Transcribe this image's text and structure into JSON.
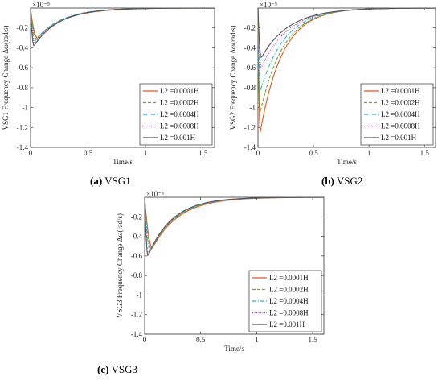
{
  "panels": [
    {
      "caption_letter": "(a)",
      "caption_text": " VSG1"
    },
    {
      "caption_letter": "(b)",
      "caption_text": " VSG2"
    },
    {
      "caption_letter": "(c)",
      "caption_text": " VSG3"
    }
  ],
  "chart_data": [
    {
      "type": "line",
      "title": "",
      "xlabel": "Time/s",
      "ylabel": "VSG1 Frequency Change Δω(rad/s)",
      "y_exponent_label": "×10⁻⁵",
      "xlim": [
        0,
        1.6
      ],
      "ylim": [
        -1.4,
        0
      ],
      "xticks": [
        0,
        0.5,
        1,
        1.5
      ],
      "xtick_labels": [
        "0",
        "0.5",
        "1",
        "1.5"
      ],
      "yticks": [
        -0.2,
        -0.4,
        -0.6,
        -0.8,
        -1,
        -1.2,
        -1.4
      ],
      "ytick_labels": [
        "-0.2",
        "-0.4",
        "-0.6",
        "-0.8",
        "-1",
        "-1.2",
        "-1.4"
      ],
      "grid": false,
      "legend_position": "bottom-right",
      "series": [
        {
          "name": "L2 =0.0001H",
          "color": "#e8541e",
          "dash": "solid",
          "peak_time": 0.06,
          "peak": -0.3,
          "tau": 0.24
        },
        {
          "name": "L2 =0.0002H",
          "color": "#6aaa2a",
          "dash": "dashed",
          "peak_time": 0.05,
          "peak": -0.31,
          "tau": 0.23
        },
        {
          "name": "L2 =0.0004H",
          "color": "#2ab0e0",
          "dash": "dashdot",
          "peak_time": 0.04,
          "peak": -0.33,
          "tau": 0.22
        },
        {
          "name": "L2 =0.0008H",
          "color": "#9b3fb3",
          "dash": "dotted",
          "peak_time": 0.035,
          "peak": -0.36,
          "tau": 0.22
        },
        {
          "name": "L2 =0.001H",
          "color": "#555555",
          "dash": "solid",
          "peak_time": 0.03,
          "peak": -0.38,
          "tau": 0.22
        }
      ]
    },
    {
      "type": "line",
      "title": "",
      "xlabel": "Time/s",
      "ylabel": "VSG2 Frequency Change Δω(rad/s)",
      "y_exponent_label": "×10⁻⁵",
      "xlim": [
        0,
        1.6
      ],
      "ylim": [
        -1.4,
        0
      ],
      "xticks": [
        0,
        0.5,
        1,
        1.5
      ],
      "xtick_labels": [
        "0",
        "0.5",
        "1",
        "1.5"
      ],
      "yticks": [
        -0.2,
        -0.4,
        -0.6,
        -0.8,
        -1,
        -1.2,
        -1.4
      ],
      "ytick_labels": [
        "-0.2",
        "-0.4",
        "-0.6",
        "-0.8",
        "-1",
        "-1.2",
        "-1.4"
      ],
      "grid": false,
      "legend_position": "bottom-right",
      "series": [
        {
          "name": "L2 =0.0001H",
          "color": "#e8541e",
          "dash": "solid",
          "peak_time": 0.02,
          "peak": -1.25,
          "tau": 0.2
        },
        {
          "name": "L2 =0.0002H",
          "color": "#6aaa2a",
          "dash": "dashed",
          "peak_time": 0.02,
          "peak": -1.05,
          "tau": 0.21
        },
        {
          "name": "L2 =0.0004H",
          "color": "#2ab0e0",
          "dash": "dashdot",
          "peak_time": 0.025,
          "peak": -0.82,
          "tau": 0.22
        },
        {
          "name": "L2 =0.0008H",
          "color": "#9b3fb3",
          "dash": "dotted",
          "peak_time": 0.03,
          "peak": -0.6,
          "tau": 0.24
        },
        {
          "name": "L2 =0.001H",
          "color": "#555555",
          "dash": "solid",
          "peak_time": 0.03,
          "peak": -0.5,
          "tau": 0.25
        }
      ]
    },
    {
      "type": "line",
      "title": "",
      "xlabel": "Time/s",
      "ylabel": "VSG3 Frequency Change Δω(rad/s)",
      "y_exponent_label": "×10⁻⁵",
      "xlim": [
        0,
        1.6
      ],
      "ylim": [
        -1.4,
        0
      ],
      "xticks": [
        0,
        0.5,
        1,
        1.5
      ],
      "xtick_labels": [
        "0",
        "0.5",
        "1",
        "1.5"
      ],
      "yticks": [
        -0.2,
        -0.4,
        -0.6,
        -0.8,
        -1,
        -1.2,
        -1.4
      ],
      "ytick_labels": [
        "-0.2",
        "-0.4",
        "-0.6",
        "-0.8",
        "-1",
        "-1.2",
        "-1.4"
      ],
      "grid": false,
      "legend_position": "bottom-right",
      "series": [
        {
          "name": "L2 =0.0001H",
          "color": "#e8541e",
          "dash": "solid",
          "peak_time": 0.07,
          "peak": -0.52,
          "tau": 0.24
        },
        {
          "name": "L2 =0.0002H",
          "color": "#6aaa2a",
          "dash": "dashed",
          "peak_time": 0.06,
          "peak": -0.53,
          "tau": 0.23
        },
        {
          "name": "L2 =0.0004H",
          "color": "#2ab0e0",
          "dash": "dashdot",
          "peak_time": 0.05,
          "peak": -0.55,
          "tau": 0.23
        },
        {
          "name": "L2 =0.0008H",
          "color": "#9b3fb3",
          "dash": "dotted",
          "peak_time": 0.035,
          "peak": -0.58,
          "tau": 0.22
        },
        {
          "name": "L2 =0.001H",
          "color": "#555555",
          "dash": "solid",
          "peak_time": 0.03,
          "peak": -0.6,
          "tau": 0.22
        }
      ]
    }
  ]
}
